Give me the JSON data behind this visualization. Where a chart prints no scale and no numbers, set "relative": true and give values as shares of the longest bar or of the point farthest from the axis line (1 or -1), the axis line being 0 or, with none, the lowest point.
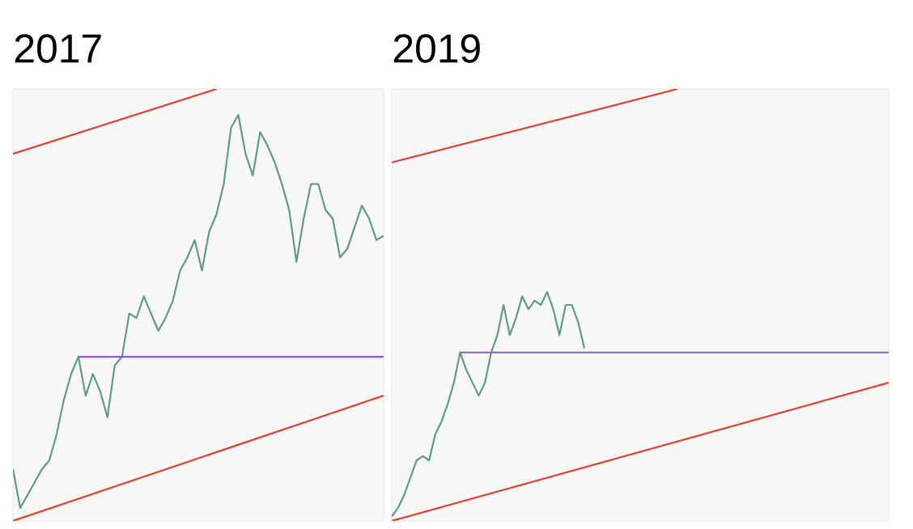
{
  "chart_data": [
    {
      "type": "line",
      "title": "2017",
      "relative": true,
      "categories": [
        null,
        null,
        null,
        null,
        null,
        null,
        null,
        null,
        null,
        null,
        null,
        null,
        null,
        null,
        null,
        null,
        null,
        null,
        null,
        null,
        null,
        null,
        null,
        null,
        null,
        null,
        null,
        null,
        null,
        null,
        null,
        null,
        null,
        null,
        null,
        null,
        null,
        null,
        null,
        null,
        null,
        null,
        null,
        null,
        null,
        null,
        null,
        null,
        null,
        null,
        null,
        null
      ],
      "series": [
        {
          "color": "#5f9a86",
          "values": [
            0.12,
            0.03,
            0.06,
            0.09,
            0.12,
            0.14,
            0.2,
            0.28,
            0.34,
            0.38,
            0.29,
            0.34,
            0.3,
            0.24,
            0.36,
            0.38,
            0.48,
            0.47,
            0.52,
            0.48,
            0.44,
            0.47,
            0.51,
            0.58,
            0.61,
            0.65,
            0.58,
            0.67,
            0.71,
            0.78,
            0.91,
            0.94,
            0.85,
            0.8,
            0.9,
            0.87,
            0.83,
            0.78,
            0.72,
            0.6,
            0.7,
            0.78,
            0.78,
            0.72,
            0.7,
            0.61,
            0.63,
            0.68,
            0.73,
            0.7,
            0.65,
            0.66
          ]
        },
        {
          "color": "#e0402e",
          "values": [
            0.85,
            null,
            null,
            null,
            null,
            null,
            null,
            null,
            null,
            null,
            null,
            null,
            null,
            null,
            null,
            null,
            null,
            null,
            null,
            null,
            null,
            null,
            null,
            null,
            null,
            null,
            null,
            null,
            1,
            null,
            null,
            null,
            null,
            null,
            null,
            null,
            null,
            null,
            null,
            null,
            null,
            null,
            null,
            null,
            null,
            null,
            null,
            null,
            null,
            null,
            null,
            null
          ]
        },
        {
          "color": "#e0402e",
          "values": [
            0,
            null,
            null,
            null,
            null,
            null,
            null,
            null,
            null,
            null,
            null,
            null,
            null,
            null,
            null,
            null,
            null,
            null,
            null,
            null,
            null,
            null,
            null,
            null,
            null,
            null,
            null,
            null,
            null,
            null,
            null,
            null,
            null,
            null,
            null,
            null,
            null,
            null,
            null,
            null,
            null,
            null,
            null,
            null,
            null,
            null,
            null,
            null,
            null,
            null,
            null,
            0.29
          ]
        },
        {
          "color": "#8a5cc8",
          "values": [
            null,
            null,
            null,
            null,
            null,
            null,
            null,
            null,
            null,
            0.38,
            null,
            null,
            null,
            null,
            null,
            null,
            null,
            null,
            null,
            null,
            null,
            null,
            null,
            null,
            null,
            null,
            null,
            null,
            null,
            null,
            null,
            null,
            null,
            null,
            null,
            null,
            null,
            null,
            null,
            null,
            null,
            null,
            null,
            null,
            null,
            null,
            null,
            null,
            null,
            null,
            null,
            0.38
          ]
        }
      ]
    },
    {
      "type": "line",
      "title": "2019",
      "relative": true,
      "categories": [
        null,
        null,
        null,
        null,
        null,
        null,
        null,
        null,
        null,
        null,
        null,
        null,
        null,
        null,
        null,
        null,
        null,
        null,
        null,
        null,
        null,
        null,
        null,
        null,
        null,
        null,
        null,
        null,
        null,
        null,
        null,
        null,
        null,
        null,
        null,
        null,
        null,
        null,
        null,
        null,
        null,
        null,
        null,
        null,
        null,
        null,
        null,
        null,
        null,
        null,
        null,
        null,
        null,
        null,
        null,
        null,
        null,
        null,
        null,
        null,
        null,
        null,
        null,
        null,
        null,
        null,
        null,
        null,
        null,
        null,
        null,
        null,
        null,
        null,
        null,
        null,
        null,
        null,
        null,
        null,
        null
      ],
      "series": [
        {
          "color": "#5f9a86",
          "values": [
            0.01,
            0.03,
            0.06,
            0.1,
            0.14,
            0.15,
            0.14,
            0.2,
            0.23,
            0.27,
            0.32,
            0.39,
            0.35,
            0.32,
            0.29,
            0.32,
            0.39,
            0.43,
            0.5,
            0.43,
            0.47,
            0.52,
            0.49,
            0.51,
            0.5,
            0.53,
            0.49,
            0.43,
            0.5,
            0.5,
            0.46,
            0.4,
            null,
            null,
            null,
            null,
            null,
            null,
            null,
            null,
            null,
            null,
            null,
            null,
            null,
            null,
            null,
            null,
            null,
            null,
            null,
            null,
            null,
            null,
            null,
            null,
            null,
            null,
            null,
            null,
            null,
            null,
            null,
            null,
            null,
            null,
            null,
            null,
            null,
            null,
            null,
            null,
            null,
            null,
            null,
            null,
            null,
            null,
            null,
            null,
            null
          ]
        },
        {
          "color": "#e0402e",
          "values": [
            0.83,
            null,
            null,
            null,
            null,
            null,
            null,
            null,
            null,
            null,
            null,
            null,
            null,
            null,
            null,
            null,
            null,
            null,
            null,
            null,
            null,
            null,
            null,
            null,
            null,
            null,
            null,
            null,
            null,
            null,
            null,
            null,
            null,
            null,
            null,
            null,
            null,
            null,
            null,
            null,
            null,
            null,
            null,
            null,
            null,
            null,
            1,
            null,
            null,
            null,
            null,
            null,
            null,
            null,
            null,
            null,
            null,
            null,
            null,
            null,
            null,
            null,
            null,
            null,
            null,
            null,
            null,
            null,
            null,
            null,
            null,
            null,
            null,
            null,
            null,
            null,
            null,
            null,
            null,
            null,
            null
          ]
        },
        {
          "color": "#e0402e",
          "values": [
            0,
            null,
            null,
            null,
            null,
            null,
            null,
            null,
            null,
            null,
            null,
            null,
            null,
            null,
            null,
            null,
            null,
            null,
            null,
            null,
            null,
            null,
            null,
            null,
            null,
            null,
            null,
            null,
            null,
            null,
            null,
            null,
            null,
            null,
            null,
            null,
            null,
            null,
            null,
            null,
            null,
            null,
            null,
            null,
            null,
            null,
            null,
            null,
            null,
            null,
            null,
            null,
            null,
            null,
            null,
            null,
            null,
            null,
            null,
            null,
            null,
            null,
            null,
            null,
            null,
            null,
            null,
            null,
            null,
            null,
            null,
            null,
            null,
            null,
            null,
            null,
            null,
            null,
            null,
            null,
            0.32
          ]
        },
        {
          "color": "#8a5cc8",
          "values": [
            null,
            null,
            null,
            null,
            null,
            null,
            null,
            null,
            null,
            null,
            null,
            0.39,
            null,
            null,
            null,
            null,
            null,
            null,
            null,
            null,
            null,
            null,
            null,
            null,
            null,
            null,
            null,
            null,
            null,
            null,
            null,
            null,
            null,
            null,
            null,
            null,
            null,
            null,
            null,
            null,
            null,
            null,
            null,
            null,
            null,
            null,
            null,
            null,
            null,
            null,
            null,
            null,
            null,
            null,
            null,
            null,
            null,
            null,
            null,
            null,
            null,
            null,
            null,
            null,
            null,
            null,
            null,
            null,
            null,
            null,
            null,
            null,
            null,
            null,
            null,
            null,
            null,
            null,
            null,
            null,
            0.39
          ]
        }
      ]
    }
  ]
}
